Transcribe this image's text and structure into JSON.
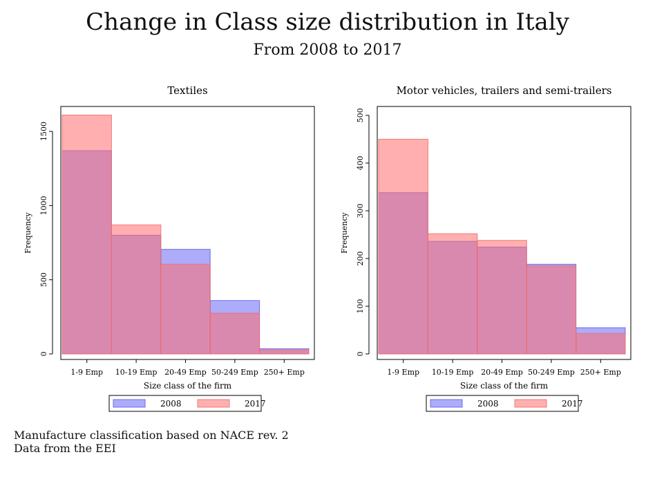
{
  "title": "Change in Class size distribution in Italy",
  "subtitle": "From 2008 to 2017",
  "note": [
    "Manufacture classification based on NACE rev. 2",
    "Data from the EEI"
  ],
  "colors": {
    "2008": "#6f6ff7",
    "2017": "#ff8c8c"
  },
  "chart_data": [
    {
      "type": "bar",
      "title": "Textiles",
      "xlabel": "Size class of the firm",
      "ylabel": "Frequency",
      "categories": [
        "1-9 Emp",
        "10-19 Emp",
        "20-49 Emp",
        "50-249 Emp",
        "250+ Emp"
      ],
      "ylim": [
        0,
        1640
      ],
      "yticks": [
        0,
        500,
        1000,
        1500
      ],
      "series": [
        {
          "name": "2008",
          "values": [
            1370,
            800,
            705,
            360,
            35
          ]
        },
        {
          "name": "2017",
          "values": [
            1610,
            870,
            605,
            275,
            28
          ]
        }
      ],
      "legend": "bottom",
      "grid": false
    },
    {
      "type": "bar",
      "title": "Motor vehicles, trailers and semi-trailers",
      "xlabel": "Size class of the firm",
      "ylabel": "Frequency",
      "categories": [
        "1-9 Emp",
        "10-19 Emp",
        "20-49 Emp",
        "50-249 Emp",
        "250+ Emp"
      ],
      "ylim": [
        0,
        510
      ],
      "yticks": [
        0,
        100,
        200,
        300,
        400,
        500
      ],
      "series": [
        {
          "name": "2008",
          "values": [
            338,
            236,
            224,
            188,
            55
          ]
        },
        {
          "name": "2017",
          "values": [
            450,
            252,
            238,
            185,
            43
          ]
        }
      ],
      "legend": "bottom",
      "grid": false
    }
  ]
}
